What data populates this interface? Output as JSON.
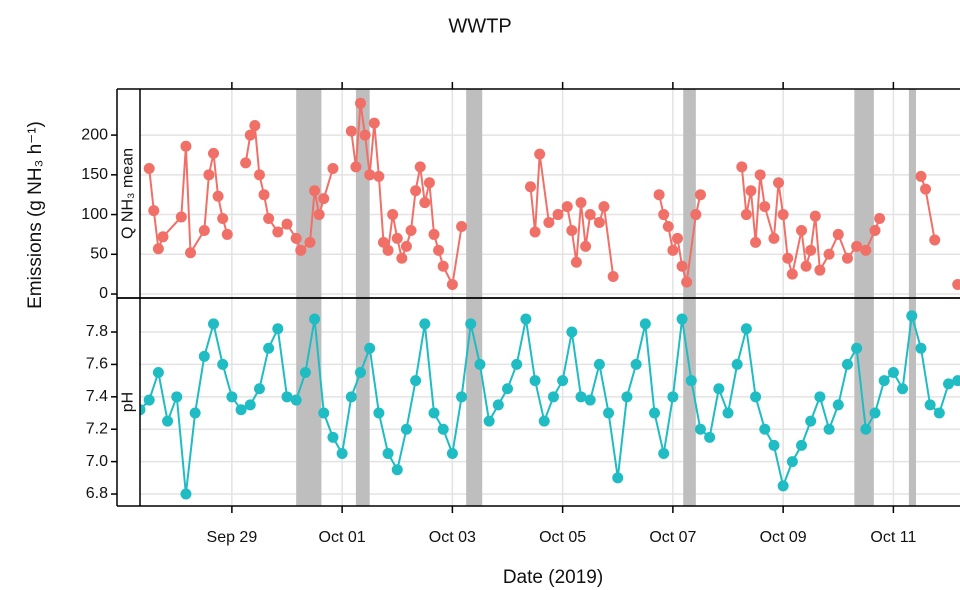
{
  "chart_data": {
    "type": "line",
    "title": "WWTP",
    "x_label": "Date (2019)",
    "y_label": "Emissions (g NH₃ h⁻¹)",
    "xlim": [
      "2019-09-27T08:00",
      "2019-10-12T05:00"
    ],
    "xticks": [
      {
        "value": "2019-09-29",
        "label": "Sep 29"
      },
      {
        "value": "2019-10-01",
        "label": "Oct 01"
      },
      {
        "value": "2019-10-03",
        "label": "Oct 03"
      },
      {
        "value": "2019-10-05",
        "label": "Oct 05"
      },
      {
        "value": "2019-10-07",
        "label": "Oct 07"
      },
      {
        "value": "2019-10-09",
        "label": "Oct 09"
      },
      {
        "value": "2019-10-11",
        "label": "Oct 11"
      }
    ],
    "grid": true,
    "shaded_ranges": {
      "color": "#bebebe",
      "ranges": [
        [
          "2019-09-30T04:00",
          "2019-09-30T15:00"
        ],
        [
          "2019-10-01T06:00",
          "2019-10-01T12:00"
        ],
        [
          "2019-10-03T06:00",
          "2019-10-03T13:00"
        ],
        [
          "2019-10-07T04:30",
          "2019-10-07T10:00"
        ],
        [
          "2019-10-10T07:00",
          "2019-10-10T15:30"
        ],
        [
          "2019-10-11T06:45",
          "2019-10-11T09:50"
        ]
      ]
    },
    "panels": [
      {
        "ylim": [
          -5,
          258
        ],
        "yticks": [
          0,
          50,
          100,
          150,
          200
        ],
        "series": [
          {
            "name": "Q NH₃ mean",
            "color": "#f07068",
            "x": [
              "2019-09-27T12:00",
              "2019-09-27T14:00",
              "2019-09-27T16:00",
              "2019-09-27T18:00",
              "2019-09-28T02:00",
              "2019-09-28T04:00",
              "2019-09-28T06:00",
              "2019-09-28T12:00",
              "2019-09-28T14:00",
              "2019-09-28T16:00",
              "2019-09-28T18:00",
              "2019-09-28T20:00",
              "2019-09-28T22:00",
              "2019-09-29T03:00",
              "2019-09-29T06:00",
              "2019-09-29T08:00",
              "2019-09-29T10:00",
              "2019-09-29T12:00",
              "2019-09-29T14:00",
              "2019-09-29T16:00",
              "2019-09-29T20:00",
              "2019-09-30T00:00",
              "2019-09-30T04:00",
              "2019-09-30T06:00",
              "2019-09-30T10:00",
              "2019-09-30T12:00",
              "2019-09-30T14:00",
              "2019-09-30T16:00",
              "2019-09-30T20:00",
              "2019-10-01T00:00",
              "2019-10-01T04:00",
              "2019-10-01T06:00",
              "2019-10-01T08:00",
              "2019-10-01T10:00",
              "2019-10-01T12:00",
              "2019-10-01T14:00",
              "2019-10-01T16:00",
              "2019-10-01T18:00",
              "2019-10-01T20:00",
              "2019-10-01T22:00",
              "2019-10-02T00:00",
              "2019-10-02T02:00",
              "2019-10-02T04:00",
              "2019-10-02T06:00",
              "2019-10-02T08:00",
              "2019-10-02T10:00",
              "2019-10-02T12:00",
              "2019-10-02T14:00",
              "2019-10-02T16:00",
              "2019-10-02T18:00",
              "2019-10-02T20:00",
              "2019-10-03T00:00",
              "2019-10-03T04:00",
              "2019-10-03T12:00",
              "2019-10-04T10:00",
              "2019-10-04T12:00",
              "2019-10-04T14:00",
              "2019-10-04T18:00",
              "2019-10-04T22:00",
              "2019-10-05T02:00",
              "2019-10-05T04:00",
              "2019-10-05T06:00",
              "2019-10-05T08:00",
              "2019-10-05T10:00",
              "2019-10-05T12:00",
              "2019-10-05T16:00",
              "2019-10-05T18:00",
              "2019-10-05T22:00",
              "2019-10-06T08:00",
              "2019-10-06T18:00",
              "2019-10-06T20:00",
              "2019-10-06T22:00",
              "2019-10-07T00:00",
              "2019-10-07T02:00",
              "2019-10-07T04:00",
              "2019-10-07T06:00",
              "2019-10-07T10:00",
              "2019-10-07T12:00",
              "2019-10-08T00:00",
              "2019-10-08T06:00",
              "2019-10-08T08:00",
              "2019-10-08T10:00",
              "2019-10-08T12:00",
              "2019-10-08T14:00",
              "2019-10-08T16:00",
              "2019-10-08T20:00",
              "2019-10-08T22:00",
              "2019-10-09T00:00",
              "2019-10-09T02:00",
              "2019-10-09T04:00",
              "2019-10-09T08:00",
              "2019-10-09T10:00",
              "2019-10-09T12:00",
              "2019-10-09T14:00",
              "2019-10-09T16:00",
              "2019-10-09T20:00",
              "2019-10-10T00:00",
              "2019-10-10T04:00",
              "2019-10-10T08:00",
              "2019-10-10T12:00",
              "2019-10-10T16:00",
              "2019-10-10T18:00",
              "2019-10-11T00:00",
              "2019-10-11T12:00",
              "2019-10-11T14:00",
              "2019-10-11T18:00",
              "2019-10-12T00:00",
              "2019-10-12T04:00"
            ],
            "values": [
              158,
              105,
              57,
              72,
              97,
              186,
              52,
              80,
              150,
              177,
              123,
              95,
              75,
              null,
              165,
              200,
              212,
              150,
              125,
              95,
              78,
              88,
              70,
              55,
              65,
              130,
              100,
              120,
              158,
              null,
              205,
              160,
              240,
              200,
              150,
              215,
              148,
              65,
              55,
              100,
              70,
              45,
              60,
              80,
              130,
              160,
              115,
              140,
              75,
              55,
              35,
              12,
              85,
              null,
              135,
              78,
              176,
              90,
              100,
              110,
              80,
              40,
              115,
              60,
              100,
              90,
              110,
              22,
              null,
              125,
              100,
              85,
              55,
              70,
              35,
              15,
              100,
              125,
              null,
              160,
              100,
              130,
              65,
              150,
              110,
              70,
              140,
              100,
              45,
              25,
              80,
              35,
              55,
              98,
              30,
              50,
              75,
              45,
              60,
              55,
              80,
              95,
              null,
              148,
              132,
              68,
              null,
              12
            ]
          }
        ]
      },
      {
        "ylim": [
          6.726,
          8.01
        ],
        "yticks": [
          6.8,
          {
            "value": 7,
            "label": "7.0"
          },
          7.2,
          7.4,
          7.6,
          7.8
        ],
        "series": [
          {
            "name": "pH",
            "color": "#1fbcc4",
            "x": [
              "2019-09-27T08:00",
              "2019-09-27T12:00",
              "2019-09-27T16:00",
              "2019-09-27T20:00",
              "2019-09-28T00:00",
              "2019-09-28T04:00",
              "2019-09-28T08:00",
              "2019-09-28T12:00",
              "2019-09-28T16:00",
              "2019-09-28T20:00",
              "2019-09-29T00:00",
              "2019-09-29T04:00",
              "2019-09-29T08:00",
              "2019-09-29T12:00",
              "2019-09-29T16:00",
              "2019-09-29T20:00",
              "2019-09-30T00:00",
              "2019-09-30T04:00",
              "2019-09-30T08:00",
              "2019-09-30T12:00",
              "2019-09-30T16:00",
              "2019-09-30T20:00",
              "2019-10-01T00:00",
              "2019-10-01T04:00",
              "2019-10-01T08:00",
              "2019-10-01T12:00",
              "2019-10-01T16:00",
              "2019-10-01T20:00",
              "2019-10-02T00:00",
              "2019-10-02T04:00",
              "2019-10-02T08:00",
              "2019-10-02T12:00",
              "2019-10-02T16:00",
              "2019-10-02T20:00",
              "2019-10-03T00:00",
              "2019-10-03T04:00",
              "2019-10-03T08:00",
              "2019-10-03T12:00",
              "2019-10-03T16:00",
              "2019-10-03T20:00",
              "2019-10-04T00:00",
              "2019-10-04T04:00",
              "2019-10-04T08:00",
              "2019-10-04T12:00",
              "2019-10-04T16:00",
              "2019-10-04T20:00",
              "2019-10-05T00:00",
              "2019-10-05T04:00",
              "2019-10-05T08:00",
              "2019-10-05T12:00",
              "2019-10-05T16:00",
              "2019-10-05T20:00",
              "2019-10-06T00:00",
              "2019-10-06T04:00",
              "2019-10-06T08:00",
              "2019-10-06T12:00",
              "2019-10-06T16:00",
              "2019-10-06T20:00",
              "2019-10-07T00:00",
              "2019-10-07T04:00",
              "2019-10-07T08:00",
              "2019-10-07T12:00",
              "2019-10-07T16:00",
              "2019-10-07T20:00",
              "2019-10-08T00:00",
              "2019-10-08T04:00",
              "2019-10-08T08:00",
              "2019-10-08T12:00",
              "2019-10-08T16:00",
              "2019-10-08T20:00",
              "2019-10-09T00:00",
              "2019-10-09T04:00",
              "2019-10-09T08:00",
              "2019-10-09T12:00",
              "2019-10-09T16:00",
              "2019-10-09T20:00",
              "2019-10-10T00:00",
              "2019-10-10T04:00",
              "2019-10-10T08:00",
              "2019-10-10T12:00",
              "2019-10-10T16:00",
              "2019-10-10T20:00",
              "2019-10-11T00:00",
              "2019-10-11T04:00",
              "2019-10-11T08:00",
              "2019-10-11T12:00",
              "2019-10-11T16:00",
              "2019-10-11T20:00",
              "2019-10-12T00:00",
              "2019-10-12T04:00"
            ],
            "values": [
              7.32,
              7.38,
              7.55,
              7.25,
              7.4,
              6.8,
              7.3,
              7.65,
              7.85,
              7.6,
              7.4,
              7.32,
              7.35,
              7.45,
              7.7,
              7.82,
              7.4,
              7.38,
              7.55,
              7.88,
              7.3,
              7.15,
              7.05,
              7.4,
              7.55,
              7.7,
              7.3,
              7.05,
              6.95,
              7.2,
              7.5,
              7.85,
              7.3,
              7.2,
              7.05,
              7.4,
              7.85,
              7.6,
              7.25,
              7.35,
              7.45,
              7.6,
              7.88,
              7.5,
              7.25,
              7.4,
              7.5,
              7.8,
              7.4,
              7.38,
              7.6,
              7.3,
              6.9,
              7.4,
              7.6,
              7.85,
              7.3,
              7.05,
              7.4,
              7.88,
              7.5,
              7.2,
              7.15,
              7.45,
              7.3,
              7.6,
              7.82,
              7.4,
              7.2,
              7.1,
              6.85,
              7.0,
              7.1,
              7.25,
              7.4,
              7.2,
              7.35,
              7.6,
              7.7,
              7.2,
              7.3,
              7.5,
              7.55,
              7.45,
              7.9,
              7.7,
              7.35,
              7.3,
              7.48,
              7.5
            ]
          }
        ]
      }
    ]
  }
}
